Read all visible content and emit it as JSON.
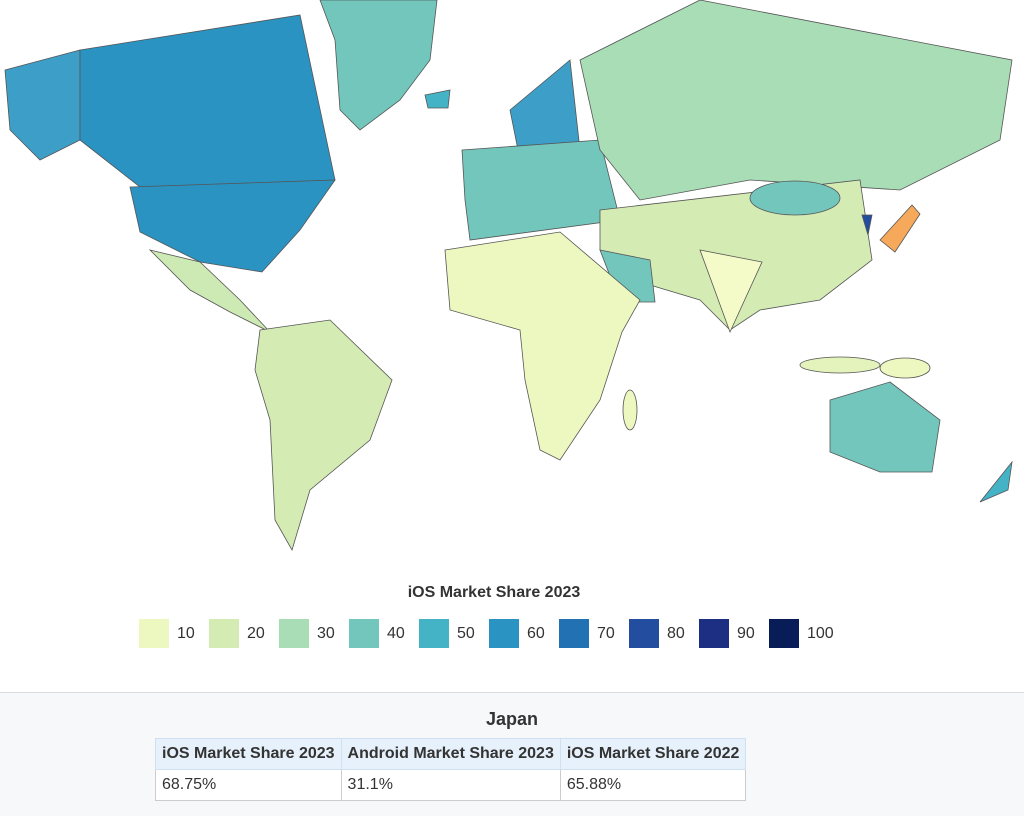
{
  "legend": {
    "title": "iOS Market Share 2023",
    "items": [
      {
        "value": 10,
        "color": "#edf8c0"
      },
      {
        "value": 20,
        "color": "#d4ecb4"
      },
      {
        "value": 30,
        "color": "#a8ddb5"
      },
      {
        "value": 40,
        "color": "#73c6bc"
      },
      {
        "value": 50,
        "color": "#45b3c6"
      },
      {
        "value": 60,
        "color": "#2b93c2"
      },
      {
        "value": 70,
        "color": "#2271b3"
      },
      {
        "value": 80,
        "color": "#234ea0"
      },
      {
        "value": 90,
        "color": "#1d2f83"
      },
      {
        "value": 100,
        "color": "#081d58"
      }
    ]
  },
  "info": {
    "title": "Japan",
    "table": {
      "headers": [
        "iOS Market Share 2023",
        "Android Market Share 2023",
        "iOS Market Share 2022"
      ],
      "rows": [
        [
          "68.75%",
          "31.1%",
          "65.88%"
        ]
      ]
    }
  }
}
